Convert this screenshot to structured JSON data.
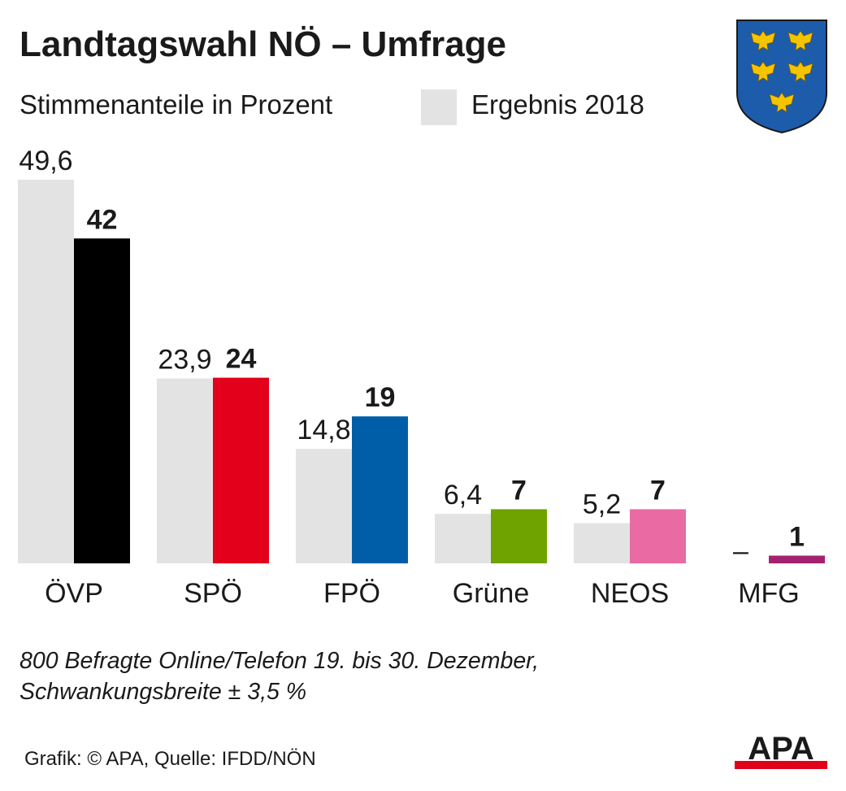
{
  "title": "Landtagswahl NÖ – Umfrage",
  "subtitle": "Stimmenanteile in Prozent",
  "legend": {
    "label": "Ergebnis 2018",
    "color": "#e3e3e3"
  },
  "note_lines": [
    "800 Befragte Online/Telefon 19. bis 30. Dezember,",
    "Schwankungsbreite ± 3,5 %"
  ],
  "source": "Grafik: © APA, Quelle: IFDD/NÖN",
  "logo_text": "APA",
  "colors": {
    "previous": "#e3e3e3",
    "logo_bar": "#e1001a",
    "shield": "#1d5cab",
    "eagle": "#f5c400"
  },
  "chart_data": {
    "type": "bar",
    "categories": [
      "ÖVP",
      "SPÖ",
      "FPÖ",
      "Grüne",
      "NEOS",
      "MFG"
    ],
    "series": [
      {
        "name": "Ergebnis 2018",
        "values": [
          49.6,
          23.9,
          14.8,
          6.4,
          5.2,
          null
        ],
        "labels": [
          "49,6",
          "23,9",
          "14,8",
          "6,4",
          "5,2",
          "–"
        ],
        "color": "#e3e3e3"
      },
      {
        "values": [
          42,
          24,
          19,
          7,
          7,
          1
        ],
        "labels": [
          "42",
          "24",
          "19",
          "7",
          "7",
          "1"
        ],
        "colors": [
          "#000000",
          "#e2001a",
          "#005ea8",
          "#6fa400",
          "#ea6aa3",
          "#a3226f"
        ]
      }
    ],
    "ylim": [
      0,
      49.6
    ],
    "grid": false,
    "legend_position": "top"
  }
}
